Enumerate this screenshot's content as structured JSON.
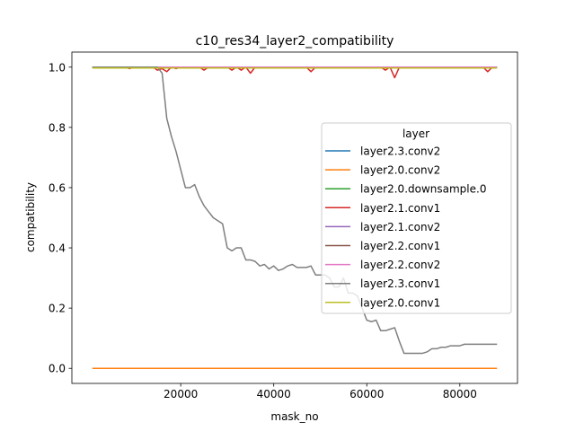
{
  "chart_data": {
    "type": "line",
    "title": "c10_res34_layer2_compatibility",
    "xlabel": "mask_no",
    "ylabel": "compatibility",
    "xlim": [
      -3400,
      92400
    ],
    "ylim": [
      -0.05,
      1.05
    ],
    "xticks": [
      20000,
      40000,
      60000,
      80000
    ],
    "yticks": [
      0.0,
      0.2,
      0.4,
      0.6,
      0.8,
      1.0
    ],
    "xtick_labels": [
      "20000",
      "40000",
      "60000",
      "80000"
    ],
    "ytick_labels": [
      "0.0",
      "0.2",
      "0.4",
      "0.6",
      "0.8",
      "1.0"
    ],
    "grid": false,
    "legend": {
      "title": "layer",
      "placement": "center-right"
    },
    "series": [
      {
        "name": "layer2.3.conv2",
        "color": "#1f77b4",
        "x": [
          1000,
          88000
        ],
        "y": [
          1.0,
          1.0
        ]
      },
      {
        "name": "layer2.0.conv2",
        "color": "#ff7f0e",
        "x": [
          1000,
          88000
        ],
        "y": [
          0.0,
          0.0
        ]
      },
      {
        "name": "layer2.0.downsample.0",
        "color": "#2ca02c",
        "x": [
          1000,
          88000
        ],
        "y": [
          1.0,
          1.0
        ]
      },
      {
        "name": "layer2.1.conv1",
        "color": "#d62728",
        "x": [
          1000,
          8000,
          9000,
          10000,
          14000,
          15000,
          16000,
          17000,
          18000,
          19000,
          20000,
          24000,
          25000,
          26000,
          30000,
          31000,
          32000,
          33000,
          34000,
          35000,
          36000,
          47000,
          48000,
          49000,
          63000,
          64000,
          65000,
          66000,
          67000,
          85000,
          86000,
          87000,
          88000
        ],
        "y": [
          1.0,
          1.0,
          0.995,
          1.0,
          1.0,
          0.99,
          0.995,
          0.985,
          1.0,
          0.995,
          1.0,
          1.0,
          0.99,
          1.0,
          1.0,
          0.99,
          1.0,
          0.99,
          1.0,
          0.98,
          1.0,
          1.0,
          0.985,
          1.0,
          1.0,
          0.99,
          1.0,
          0.965,
          1.0,
          1.0,
          0.985,
          1.0,
          1.0
        ]
      },
      {
        "name": "layer2.1.conv2",
        "color": "#9467bd",
        "x": [
          1000,
          88000
        ],
        "y": [
          1.0,
          1.0
        ]
      },
      {
        "name": "layer2.2.conv1",
        "color": "#8c564b",
        "x": [
          1000,
          88000
        ],
        "y": [
          1.0,
          1.0
        ]
      },
      {
        "name": "layer2.2.conv2",
        "color": "#e377c2",
        "x": [
          1000,
          88000
        ],
        "y": [
          1.0,
          1.0
        ]
      },
      {
        "name": "layer2.3.conv1",
        "color": "#7f7f7f",
        "x": [
          1000,
          15000,
          16000,
          17000,
          18000,
          19000,
          20000,
          21000,
          22000,
          23000,
          24000,
          25000,
          26000,
          27000,
          28000,
          29000,
          30000,
          31000,
          32000,
          33000,
          34000,
          35000,
          36000,
          37000,
          38000,
          39000,
          40000,
          41000,
          42000,
          43000,
          44000,
          45000,
          46000,
          47000,
          48000,
          49000,
          50000,
          51000,
          52000,
          53000,
          54000,
          55000,
          56000,
          57000,
          58000,
          59000,
          60000,
          61000,
          62000,
          63000,
          64000,
          65000,
          66000,
          67000,
          68000,
          69000,
          70000,
          71000,
          72000,
          73000,
          74000,
          75000,
          76000,
          77000,
          78000,
          79000,
          80000,
          81000,
          82000,
          83000,
          84000,
          85000,
          86000,
          87000,
          88000
        ],
        "y": [
          1.0,
          1.0,
          0.98,
          0.83,
          0.77,
          0.72,
          0.66,
          0.6,
          0.6,
          0.61,
          0.57,
          0.54,
          0.52,
          0.5,
          0.49,
          0.48,
          0.4,
          0.39,
          0.4,
          0.4,
          0.36,
          0.36,
          0.355,
          0.34,
          0.345,
          0.33,
          0.34,
          0.325,
          0.33,
          0.34,
          0.345,
          0.335,
          0.335,
          0.335,
          0.34,
          0.31,
          0.31,
          0.31,
          0.3,
          0.27,
          0.27,
          0.3,
          0.25,
          0.25,
          0.24,
          0.2,
          0.16,
          0.155,
          0.16,
          0.125,
          0.125,
          0.13,
          0.135,
          0.09,
          0.05,
          0.05,
          0.05,
          0.05,
          0.05,
          0.055,
          0.065,
          0.065,
          0.07,
          0.07,
          0.075,
          0.075,
          0.075,
          0.08,
          0.08,
          0.08,
          0.08,
          0.08,
          0.08,
          0.08,
          0.08
        ]
      },
      {
        "name": "layer2.0.conv1",
        "color": "#bcbd22",
        "x": [
          1000,
          88000
        ],
        "y": [
          0.997,
          0.997
        ]
      }
    ]
  }
}
